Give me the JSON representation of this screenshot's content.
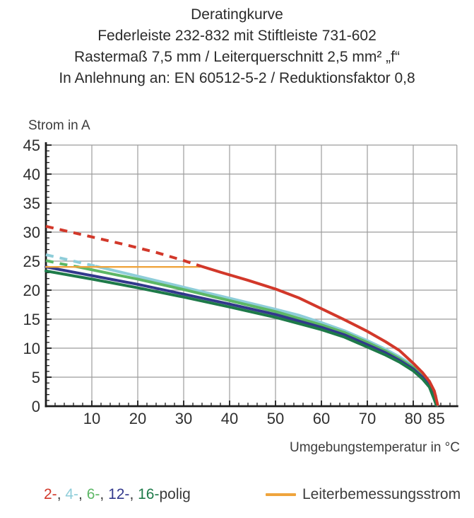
{
  "title": {
    "line1": "Deratingkurve",
    "line2": "Federleiste 232-832 mit Stiftleiste 731-602",
    "line3": "Rastermaß 7,5 mm / Leiterquerschnitt 2,5 mm² „f“",
    "line4": "In Anlehnung an: EN 60512-5-2 / Reduktionsfaktor 0,8"
  },
  "axes": {
    "y_label": "Strom in A",
    "x_label": "Umgebungstemperatur in °C"
  },
  "legend": {
    "poles": [
      {
        "label": "2-",
        "color": "#d2382a"
      },
      {
        "label": "4-",
        "color": "#8ecdd9"
      },
      {
        "label": "6-",
        "color": "#5cb765"
      },
      {
        "label": "12-",
        "color": "#32388c"
      },
      {
        "label": "16-",
        "color": "#1e7a49"
      }
    ],
    "separator": ", ",
    "poles_suffix": "polig",
    "rated_label": "Leiterbemessungsstrom",
    "rated_color": "#efa43d"
  },
  "chart_data": {
    "type": "line",
    "title": "Deratingkurve — Federleiste 232-832 mit Stiftleiste 731-602",
    "xlabel": "Umgebungstemperatur in °C",
    "ylabel": "Strom in A",
    "xlim": [
      0,
      90
    ],
    "ylim": [
      0,
      45
    ],
    "x_major_ticks": [
      10,
      20,
      30,
      40,
      50,
      60,
      70,
      80,
      85
    ],
    "x_minor_step": 2,
    "y_major_ticks": [
      0,
      5,
      10,
      15,
      20,
      25,
      30,
      35,
      40,
      45
    ],
    "y_minor_step": 1,
    "grid": true,
    "grid_color": "#9c9c9c",
    "axis_color": "#1c1c1c",
    "tick_label_color": "#2f2f2f",
    "legend_position": "bottom",
    "dashed_note": "curve sections above the 24 A Leiterbemessungsstrom are drawn dashed",
    "series": [
      {
        "name": "4-polig",
        "color": "#8ecdd9",
        "dashed_points": [
          [
            0,
            26.1
          ],
          [
            5,
            25.2
          ],
          [
            11,
            24.1
          ]
        ],
        "solid_points": [
          [
            11,
            24.1
          ],
          [
            20,
            22.4
          ],
          [
            30,
            20.5
          ],
          [
            40,
            18.6
          ],
          [
            50,
            16.7
          ],
          [
            55,
            15.7
          ],
          [
            60,
            14.4
          ],
          [
            65,
            13.0
          ],
          [
            70,
            11.3
          ],
          [
            74,
            9.8
          ],
          [
            77,
            8.5
          ],
          [
            80,
            7.0
          ],
          [
            82,
            5.5
          ],
          [
            83.5,
            4.0
          ],
          [
            84.9,
            1.8
          ],
          [
            85.2,
            0.2
          ]
        ]
      },
      {
        "name": "6-polig",
        "color": "#5cb765",
        "dashed_points": [
          [
            0,
            25.1
          ],
          [
            3.5,
            24.5
          ],
          [
            7,
            24.0
          ]
        ],
        "solid_points": [
          [
            7,
            24.0
          ],
          [
            15,
            22.7
          ],
          [
            20,
            21.9
          ],
          [
            30,
            20.1
          ],
          [
            40,
            18.2
          ],
          [
            50,
            16.3
          ],
          [
            60,
            14.0
          ],
          [
            65,
            12.7
          ],
          [
            70,
            11.0
          ],
          [
            74,
            9.5
          ],
          [
            77,
            8.2
          ],
          [
            80,
            6.7
          ],
          [
            82,
            5.2
          ],
          [
            83.5,
            3.8
          ],
          [
            84.8,
            1.6
          ],
          [
            85.1,
            0.2
          ]
        ]
      },
      {
        "name": "12-polig",
        "color": "#32388c",
        "dashed_points": [],
        "solid_points": [
          [
            0,
            24.0
          ],
          [
            10,
            22.5
          ],
          [
            20,
            21.0
          ],
          [
            30,
            19.3
          ],
          [
            40,
            17.6
          ],
          [
            50,
            15.8
          ],
          [
            60,
            13.6
          ],
          [
            65,
            12.3
          ],
          [
            70,
            10.6
          ],
          [
            74,
            9.2
          ],
          [
            77,
            7.9
          ],
          [
            80,
            6.4
          ],
          [
            82,
            5.0
          ],
          [
            83.5,
            3.5
          ],
          [
            84.7,
            1.4
          ],
          [
            85.0,
            0.2
          ]
        ]
      },
      {
        "name": "16-polig",
        "color": "#1e7a49",
        "dashed_points": [],
        "solid_points": [
          [
            0,
            23.3
          ],
          [
            10,
            21.9
          ],
          [
            20,
            20.4
          ],
          [
            30,
            18.8
          ],
          [
            40,
            17.1
          ],
          [
            50,
            15.3
          ],
          [
            60,
            13.2
          ],
          [
            65,
            11.9
          ],
          [
            70,
            10.2
          ],
          [
            74,
            8.8
          ],
          [
            77,
            7.6
          ],
          [
            80,
            6.1
          ],
          [
            82,
            4.7
          ],
          [
            83.5,
            3.3
          ],
          [
            84.6,
            1.1
          ],
          [
            85.0,
            0.2
          ]
        ]
      },
      {
        "name": "Leiterbemessungsstrom",
        "color": "#efa43d",
        "rated_current": 24,
        "dashed_points": [],
        "solid_points": [
          [
            0,
            24
          ],
          [
            33.5,
            24
          ]
        ]
      },
      {
        "name": "2-polig",
        "color": "#d2382a",
        "dashed_points": [
          [
            0,
            31
          ],
          [
            6,
            29.9
          ],
          [
            12,
            28.8
          ],
          [
            18,
            27.7
          ],
          [
            24,
            26.5
          ],
          [
            30,
            25.1
          ],
          [
            33.5,
            24.2
          ]
        ],
        "solid_points": [
          [
            33.5,
            24.2
          ],
          [
            38,
            23.1
          ],
          [
            44,
            21.7
          ],
          [
            50,
            20.2
          ],
          [
            55,
            18.7
          ],
          [
            60,
            16.8
          ],
          [
            65,
            14.9
          ],
          [
            70,
            12.9
          ],
          [
            74,
            11.1
          ],
          [
            77,
            9.6
          ],
          [
            80,
            7.4
          ],
          [
            82,
            5.8
          ],
          [
            83.5,
            4.3
          ],
          [
            84.6,
            2.6
          ],
          [
            85.3,
            0.3
          ]
        ]
      }
    ]
  }
}
